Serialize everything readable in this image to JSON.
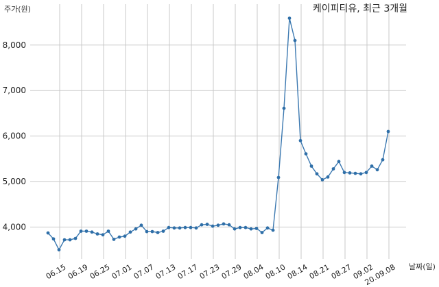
{
  "chart_data": {
    "type": "line",
    "title": "케이피티유, 최근 3개월",
    "xlabel": "날짜(일)",
    "ylabel": "주가(원)",
    "ylim": [
      3300,
      8900
    ],
    "yticks": [
      4000,
      5000,
      6000,
      7000,
      8000
    ],
    "ytick_labels": [
      "4,000",
      "5,000",
      "6,000",
      "7,000",
      "8,000"
    ],
    "xticks": [
      "06.15",
      "06.19",
      "06.25",
      "07.01",
      "07.07",
      "07.13",
      "07.17",
      "07.23",
      "07.29",
      "08.04",
      "08.10",
      "08.14",
      "08.21",
      "08.27",
      "09.02",
      "20.09.08"
    ],
    "grid": true,
    "series": [
      {
        "values": [
          3870,
          3740,
          3500,
          3720,
          3720,
          3750,
          3910,
          3910,
          3890,
          3850,
          3830,
          3910,
          3730,
          3780,
          3800,
          3890,
          3960,
          4040,
          3900,
          3900,
          3880,
          3910,
          3990,
          3980,
          3980,
          3990,
          3990,
          3980,
          4050,
          4060,
          4020,
          4040,
          4070,
          4050,
          3960,
          3990,
          3990,
          3960,
          3970,
          3880,
          3980,
          3930,
          5090,
          6610,
          8590,
          8100,
          5900,
          5610,
          5340,
          5170,
          5040,
          5100,
          5280,
          5440,
          5200,
          5190,
          5180,
          5170,
          5200,
          5340,
          5260,
          5480,
          6100
        ]
      }
    ]
  }
}
